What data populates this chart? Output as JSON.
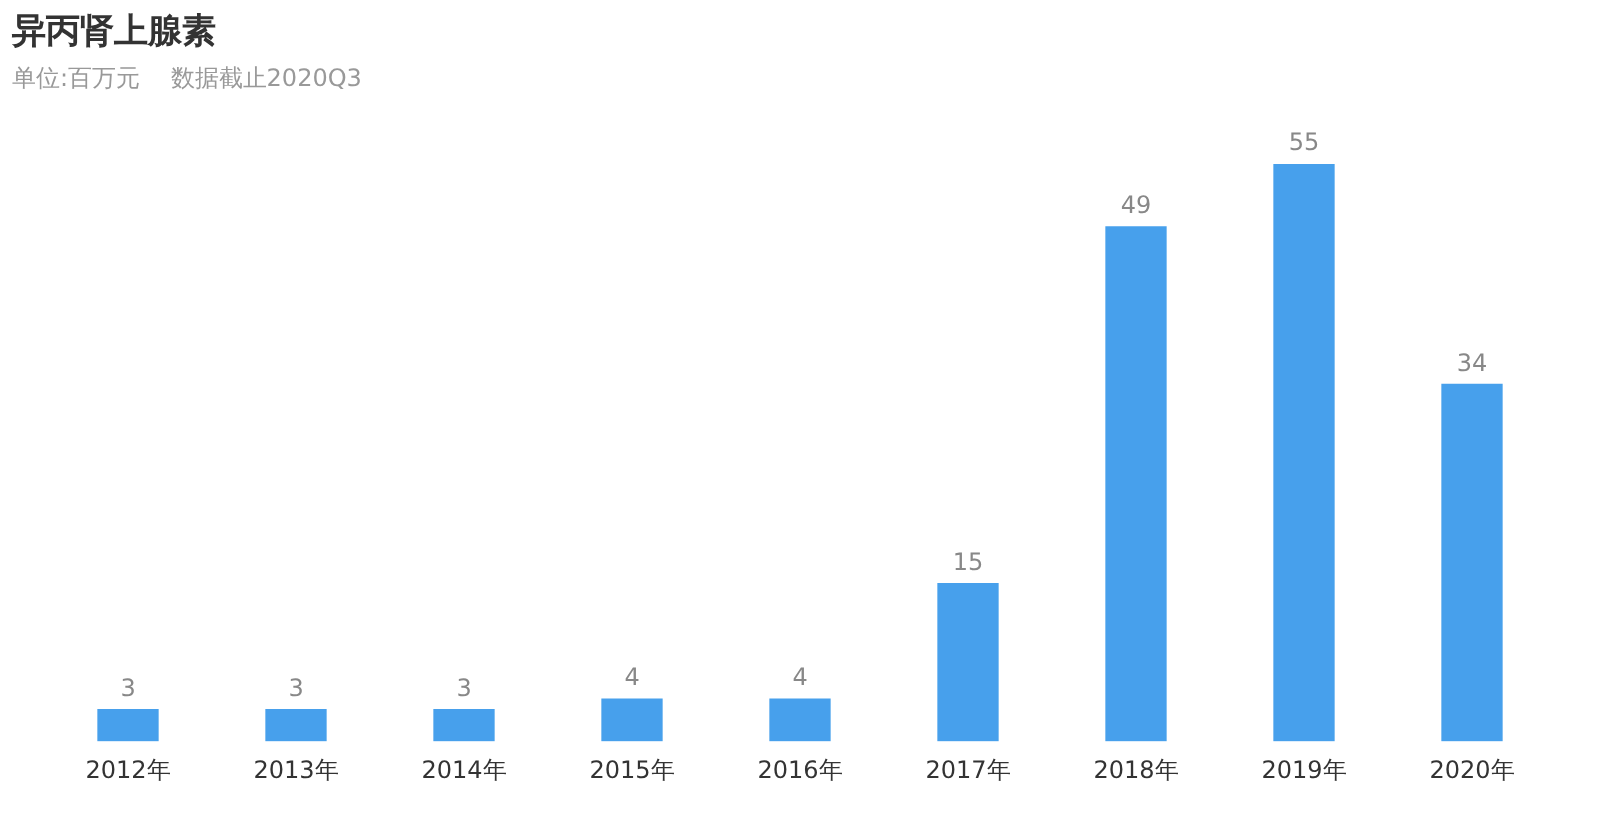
{
  "chart_data": {
    "type": "bar",
    "title": "异丙肾上腺素",
    "subtitle": "单位:百万元    数据截止2020Q3",
    "categories": [
      "2012年",
      "2013年",
      "2014年",
      "2015年",
      "2016年",
      "2017年",
      "2018年",
      "2019年",
      "2020年"
    ],
    "values": [
      3,
      3,
      3,
      4,
      4,
      15,
      49,
      55,
      34
    ],
    "color": "#47a0ec",
    "tick_labels": "x",
    "data_labels": true,
    "grid": false,
    "legend": false
  }
}
